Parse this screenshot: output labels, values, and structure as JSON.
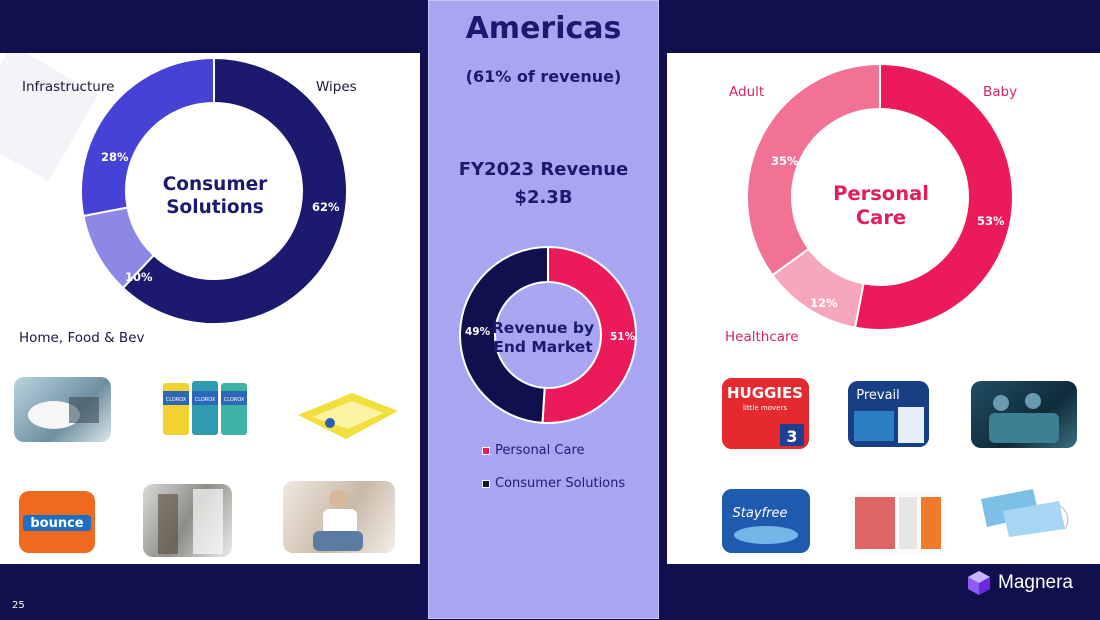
{
  "center": {
    "title": "Americas",
    "subtitle": "(61% of revenue)",
    "revenue_line1": "FY2023 Revenue",
    "revenue_line2": "$2.3B",
    "donut_label_line1": "Revenue by",
    "donut_label_line2": "End Market"
  },
  "left": {
    "donut_label_line1": "Consumer",
    "donut_label_line2": "Solutions",
    "labels": {
      "infrastructure": "Infrastructure",
      "wipes": "Wipes",
      "home": "Home, Food & Bev"
    }
  },
  "right": {
    "donut_label_line1": "Personal",
    "donut_label_line2": "Care",
    "labels": {
      "adult": "Adult",
      "baby": "Baby",
      "healthcare": "Healthcare"
    }
  },
  "legend": {
    "personal_care": "Personal Care",
    "consumer_solutions": "Consumer Solutions"
  },
  "product_text": {
    "clorox": "CLOROX",
    "huggies": "HUGGIES",
    "huggies_sub": "little movers",
    "huggies_count": "3",
    "prevail": "Prevail",
    "stayfree": "Stayfree",
    "bounce": "bounce"
  },
  "footer": {
    "page": "25",
    "brand": "Magnera"
  },
  "colors": {
    "navy": "#10104f",
    "wipes": "#1b1a6e",
    "infrastructure": "#4642d6",
    "home": "#8b88e6",
    "baby": "#ea1a5b",
    "adult": "#f27295",
    "healthcare": "#f7a7bd"
  },
  "chart_data": [
    {
      "type": "pie",
      "title": "Consumer Solutions",
      "categories": [
        "Wipes",
        "Home, Food & Bev",
        "Infrastructure"
      ],
      "values": [
        62,
        10,
        28
      ],
      "labels": [
        "62%",
        "10%",
        "28%"
      ]
    },
    {
      "type": "pie",
      "title": "Revenue by End Market",
      "categories": [
        "Personal Care",
        "Consumer Solutions"
      ],
      "values": [
        51,
        49
      ],
      "labels": [
        "51%",
        "49%"
      ]
    },
    {
      "type": "pie",
      "title": "Personal Care",
      "categories": [
        "Baby",
        "Healthcare",
        "Adult"
      ],
      "values": [
        53,
        12,
        35
      ],
      "labels": [
        "53%",
        "12%",
        "35%"
      ]
    }
  ]
}
